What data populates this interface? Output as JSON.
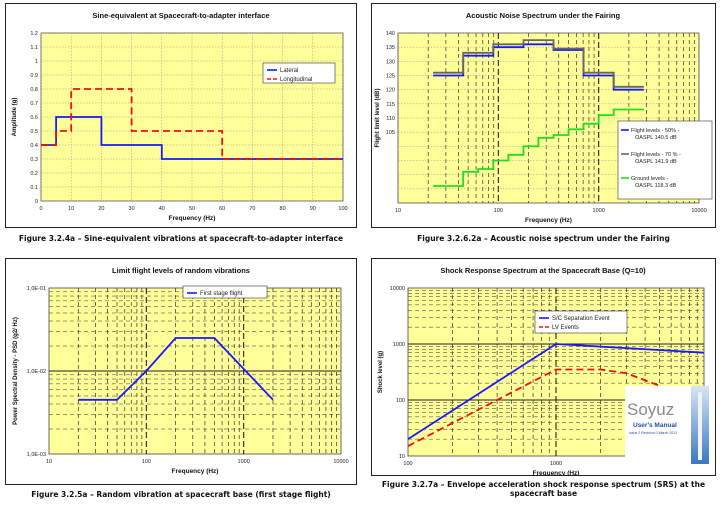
{
  "chart_data": [
    {
      "id": "sine",
      "type": "line",
      "title": "Sine-equivalent at Spacecraft-to-adapter interface",
      "xlabel": "Frequency (Hz)",
      "ylabel": "Amplitude (g)",
      "xscale": "linear",
      "yscale": "linear",
      "xlim": [
        0,
        100
      ],
      "ylim": [
        0,
        1.2
      ],
      "xticks": [
        0,
        10,
        20,
        30,
        40,
        50,
        60,
        70,
        80,
        90,
        100
      ],
      "yticks": [
        0,
        0.1,
        0.2,
        0.3,
        0.4,
        0.5,
        0.6,
        0.7,
        0.8,
        0.9,
        1,
        1.1,
        1.2
      ],
      "grid": true,
      "legend": "top-right",
      "series": [
        {
          "name": "Lateral",
          "color": "#1a1aff",
          "dash": "none",
          "x": [
            0,
            5,
            5,
            20,
            20,
            40,
            40,
            100
          ],
          "y": [
            0.4,
            0.4,
            0.6,
            0.6,
            0.4,
            0.4,
            0.3,
            0.3
          ]
        },
        {
          "name": "Longitudinal",
          "color": "#ee1111",
          "dash": "7,4",
          "x": [
            0,
            5,
            5,
            10,
            10,
            30,
            30,
            60,
            60,
            100
          ],
          "y": [
            0.4,
            0.4,
            0.5,
            0.5,
            0.8,
            0.8,
            0.5,
            0.5,
            0.3,
            0.3
          ]
        }
      ],
      "caption": "Figure 3.2.4a – Sine-equivalent vibrations at spacecraft-to-adapter interface"
    },
    {
      "id": "acoustic",
      "type": "line",
      "title": "Acoustic Noise Spectrum under the Fairing",
      "xlabel": "Frequency (Hz)",
      "ylabel": "Flight limit level (dB)",
      "xscale": "log",
      "yscale": "linear",
      "xlim": [
        10,
        10000
      ],
      "ylim": [
        80,
        140
      ],
      "xticks": [
        10,
        100,
        1000,
        10000
      ],
      "xticklabels": [
        "10",
        "100",
        "1000",
        "10000"
      ],
      "yticks": [
        80,
        85,
        90,
        95,
        100,
        105,
        110,
        115,
        120,
        125,
        130,
        135,
        140
      ],
      "yticklabels": [
        "",
        "",
        "",
        "",
        "",
        "105",
        "110",
        "115",
        "120",
        "125",
        "130",
        "135",
        "140"
      ],
      "grid": true,
      "legend": "right",
      "series": [
        {
          "name": "Flight levels - 50% - OASPL 140.5 dB",
          "color": "#1a1aff",
          "x": [
            22.4,
            44.7,
            44.7,
            89.1,
            89.1,
            178,
            178,
            355,
            355,
            708,
            708,
            1413,
            1413,
            2818
          ],
          "y": [
            125,
            125,
            132,
            132,
            135,
            135,
            136,
            136,
            134,
            134,
            125,
            125,
            120,
            120
          ]
        },
        {
          "name": "Flight levels - 70 % - OASPL 141.9 dB",
          "color": "#666666",
          "x": [
            22.4,
            44.7,
            44.7,
            89.1,
            89.1,
            178,
            178,
            355,
            355,
            708,
            708,
            1413,
            1413,
            2818
          ],
          "y": [
            126,
            126,
            133,
            133,
            136,
            136,
            137.5,
            137.5,
            134.5,
            134.5,
            126,
            126,
            121,
            121
          ]
        },
        {
          "name": "Ground levels - OASPL 118.3 dB",
          "color": "#22dd22",
          "x": [
            22.4,
            44.7,
            44.7,
            63,
            63,
            89.1,
            89.1,
            126,
            126,
            178,
            178,
            251,
            251,
            355,
            355,
            501,
            501,
            708,
            708,
            1000,
            1000,
            1413,
            1413,
            2818
          ],
          "y": [
            86,
            86,
            91,
            91,
            92,
            92,
            95,
            95,
            97,
            97,
            100,
            100,
            103,
            103,
            104,
            104,
            106,
            106,
            108,
            108,
            111,
            111,
            113,
            113
          ]
        }
      ],
      "caption": "Figure 3.2.6.2a – Acoustic noise spectrum under the Fairing"
    },
    {
      "id": "random",
      "type": "line",
      "title": "Limit flight levels of random vibrations",
      "xlabel": "Frequency (Hz)",
      "ylabel": "Power Spectral Density - PSD (g2/ Hz)",
      "xscale": "log",
      "yscale": "log",
      "xlim": [
        10,
        10000
      ],
      "ylim": [
        0.001,
        0.1
      ],
      "xticks": [
        10,
        100,
        1000,
        10000
      ],
      "xticklabels": [
        "10",
        "100",
        "1000",
        "10000"
      ],
      "yticks": [
        0.001,
        0.01,
        0.1
      ],
      "yticklabels": [
        "1,0E-03",
        "1,0E-02",
        "1,0E-01"
      ],
      "grid": true,
      "legend": "top-center",
      "series": [
        {
          "name": "First stage flight",
          "color": "#1a1aff",
          "x": [
            20,
            50,
            100,
            200,
            500,
            2000
          ],
          "y": [
            0.0045,
            0.0045,
            0.01,
            0.025,
            0.025,
            0.0045
          ]
        }
      ],
      "caption": "Figure 3.2.5a – Random vibration at spacecraft base (first stage flight)"
    },
    {
      "id": "shock",
      "type": "line",
      "title": "Shock Response Spectrum at the Spacecraft Base (Q=10)",
      "xlabel": "Frequency (Hz)",
      "ylabel": "Shock level (g)",
      "xscale": "log",
      "yscale": "log",
      "xlim": [
        100,
        10000
      ],
      "ylim": [
        10,
        10000
      ],
      "xticks": [
        100,
        1000,
        10000
      ],
      "xticklabels": [
        "100",
        "1000",
        "10000"
      ],
      "yticks": [
        10,
        100,
        1000,
        10000
      ],
      "yticklabels": [
        "10",
        "100",
        "1000",
        "10000"
      ],
      "grid": true,
      "legend": "top-left",
      "series": [
        {
          "name": "S/C Separation Event",
          "color": "#1a1aff",
          "dash": "none",
          "x": [
            100,
            1000,
            10000
          ],
          "y": [
            20,
            1000,
            700
          ]
        },
        {
          "name": "LV Events",
          "color": "#ee1111",
          "dash": "7,4",
          "x": [
            100,
            1000,
            2000,
            3000,
            5000
          ],
          "y": [
            15,
            350,
            350,
            300,
            180
          ]
        }
      ],
      "caption": "Figure 3.2.7a – Envelope acceleration shock response spectrum (SRS) at the spacecraft base"
    }
  ],
  "logo": {
    "text": "Soyuz",
    "subtitle": "User's Manual",
    "small": "Issue 2 Revision 0 March 2012"
  },
  "colors": {
    "plot_bg": "#ffff99",
    "axis": "#444444",
    "grid_dash": "#333333",
    "grid_light": "#999999"
  }
}
